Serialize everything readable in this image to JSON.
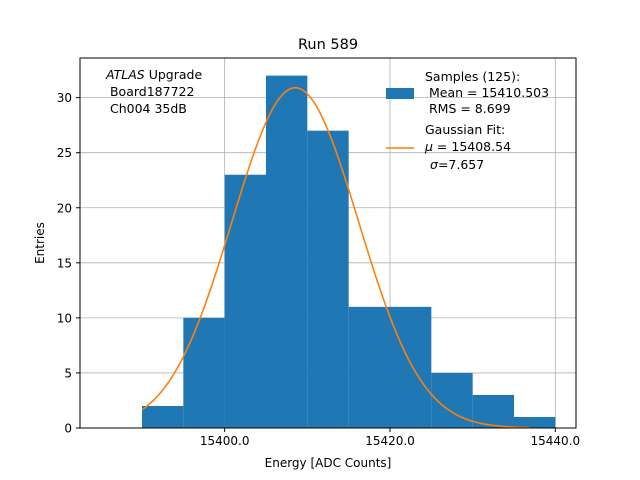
{
  "chart_data": {
    "type": "bar",
    "title": "Run 589",
    "xlabel": "Energy [ADC Counts]",
    "ylabel": "Entries",
    "xlim": [
      15382.5,
      15442.5
    ],
    "ylim": [
      0,
      33.6
    ],
    "grid": true,
    "bin_edges": [
      15390,
      15395,
      15400,
      15405,
      15410,
      15415,
      15420,
      15425,
      15430,
      15435,
      15440
    ],
    "values": [
      2,
      10,
      23,
      32,
      27,
      11,
      11,
      5,
      3,
      1
    ],
    "x_ticks": [
      15400,
      15420,
      15440
    ],
    "x_tick_labels": [
      "15400.0",
      "15420.0",
      "15440.0"
    ],
    "y_ticks": [
      0,
      5,
      10,
      15,
      20,
      25,
      30
    ],
    "y_tick_labels": [
      "0",
      "5",
      "10",
      "15",
      "20",
      "25",
      "30"
    ],
    "fit": {
      "mu": 15408.54,
      "sigma": 7.657,
      "amplitude": 30.9,
      "x_range": [
        15390,
        15437
      ]
    },
    "annotation": {
      "italic": "ATLAS",
      "lines": [
        " Upgrade",
        " Board187722",
        " Ch004 35dB"
      ]
    },
    "legend": {
      "placement": "top-right",
      "samples": {
        "lines": [
          "Samples (125):",
          " Mean = 15410.503",
          " RMS = 8.699"
        ]
      },
      "fit": {
        "line1": "Gaussian Fit:",
        "mu_symbol": "μ",
        "mu_text": " = 15408.54",
        "sigma_symbol": "σ",
        "sigma_text": "=7.657"
      }
    },
    "colors": {
      "bar": "#1f77b4",
      "fit": "#ff7f0e",
      "grid": "#b0b0b0"
    }
  }
}
